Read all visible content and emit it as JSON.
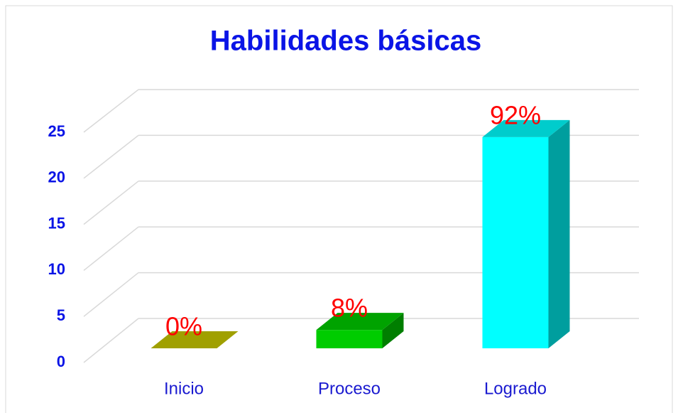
{
  "chart_data": {
    "type": "bar3d",
    "title": "Habilidades básicas",
    "categories": [
      "Inicio",
      "Proceso",
      "Logrado"
    ],
    "values": [
      0,
      2,
      23
    ],
    "value_labels": [
      "0%",
      "8%",
      "92%"
    ],
    "colors": [
      "#c8c800",
      "#00cc00",
      "#00ffff"
    ],
    "ylim": [
      0,
      25
    ],
    "yticks": [
      0,
      5,
      10,
      15,
      20,
      25
    ],
    "grid": true
  }
}
